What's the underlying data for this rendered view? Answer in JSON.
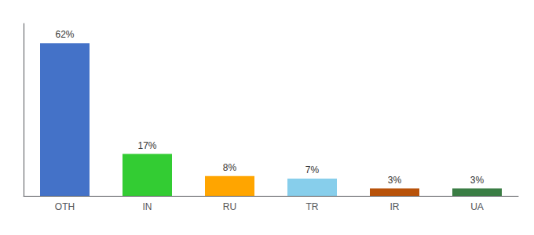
{
  "chart_data": {
    "type": "bar",
    "categories": [
      "OTH",
      "IN",
      "RU",
      "TR",
      "IR",
      "UA"
    ],
    "values": [
      62,
      17,
      8,
      7,
      3,
      3
    ],
    "value_labels": [
      "62%",
      "17%",
      "8%",
      "7%",
      "3%",
      "3%"
    ],
    "colors": [
      "#4472c8",
      "#33cc33",
      "#ffa500",
      "#87ceeb",
      "#b8520a",
      "#3a7d44"
    ],
    "ylim": [
      0,
      70
    ],
    "grid": false,
    "data_labels": true,
    "tick_labels": "x"
  }
}
